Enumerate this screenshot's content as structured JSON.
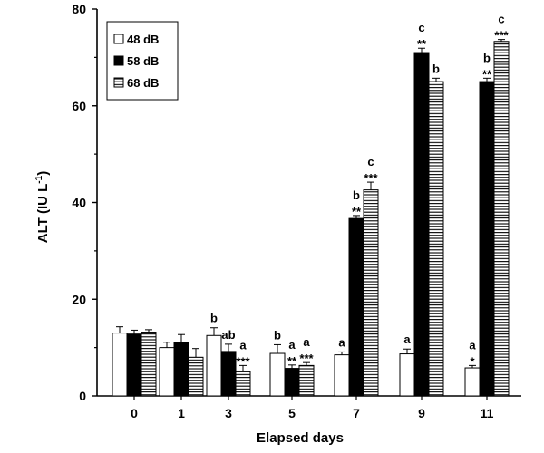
{
  "chart_data": {
    "type": "bar",
    "xlabel": "Elapsed days",
    "ylabel_main": "ALT (IU L",
    "ylabel_sup": "-1",
    "ylabel_tail": ")",
    "ylim": [
      0,
      80
    ],
    "yticks": [
      0,
      20,
      40,
      60,
      80
    ],
    "categories": [
      "0",
      "1",
      "3",
      "5",
      "7",
      "9",
      "11"
    ],
    "series": [
      {
        "name": "48 dB",
        "fill": "#ffffff",
        "pattern": "none",
        "values": [
          13.0,
          10.0,
          12.5,
          8.8,
          8.5,
          8.7,
          5.8
        ],
        "errors": [
          1.3,
          1.1,
          1.6,
          1.8,
          0.6,
          1.0,
          0.5
        ],
        "letters": [
          "",
          "",
          "b",
          "b",
          "a",
          "a",
          "a"
        ],
        "stars": [
          "",
          "",
          "",
          "",
          "",
          "",
          "*"
        ]
      },
      {
        "name": "58 dB",
        "fill": "#000000",
        "pattern": "solid",
        "values": [
          12.8,
          11.0,
          9.2,
          5.7,
          36.7,
          71.0,
          65.0
        ],
        "errors": [
          0.8,
          1.7,
          1.5,
          0.7,
          0.6,
          0.9,
          0.7
        ],
        "letters": [
          "",
          "",
          "ab",
          "a",
          "b",
          "c",
          "b"
        ],
        "stars": [
          "",
          "",
          "",
          "**",
          "**",
          "**",
          "**"
        ]
      },
      {
        "name": "68 dB",
        "fill": "#ffffff",
        "pattern": "hstripes",
        "values": [
          13.2,
          8.0,
          5.0,
          6.3,
          42.6,
          65.0,
          73.3
        ],
        "errors": [
          0.5,
          1.8,
          1.3,
          0.6,
          1.6,
          0.7,
          0.4
        ],
        "letters": [
          "",
          "",
          "a",
          "a",
          "c",
          "b",
          "c"
        ],
        "stars": [
          "",
          "",
          "***",
          "***",
          "***",
          "",
          "***"
        ]
      }
    ],
    "legend": {
      "position": "top-left"
    }
  }
}
